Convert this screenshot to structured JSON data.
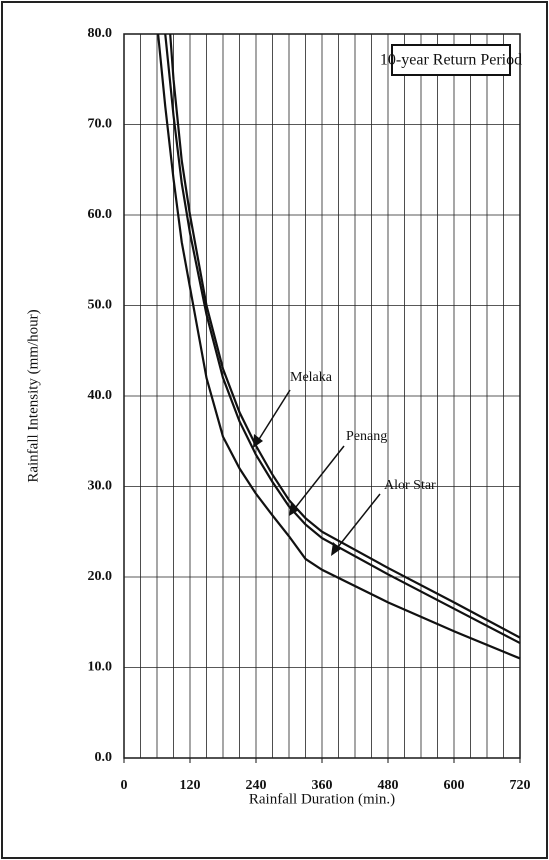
{
  "chart_data": {
    "type": "line",
    "annotations": [
      "10-year Return Period",
      "Melaka",
      "Penang",
      "Alor Star"
    ],
    "xlabel": "Rainfall Duration (min.)",
    "ylabel": "Rainfall Intensity (mm/hour)",
    "xlim": [
      0,
      720
    ],
    "ylim": [
      0,
      80
    ],
    "xticks": [
      0,
      120,
      240,
      360,
      480,
      600,
      720
    ],
    "xgrid": [
      0,
      30,
      60,
      90,
      120,
      150,
      180,
      210,
      240,
      270,
      300,
      330,
      360,
      390,
      420,
      450,
      480,
      510,
      540,
      570,
      600,
      630,
      660,
      690,
      720
    ],
    "yticks": [
      {
        "value": 0,
        "label": "0.0"
      },
      {
        "value": 10,
        "label": "10.0"
      },
      {
        "value": 20,
        "label": "20.0"
      },
      {
        "value": 30,
        "label": "30.0"
      },
      {
        "value": 40,
        "label": "40.0"
      },
      {
        "value": 50,
        "label": "50.0"
      },
      {
        "value": 60,
        "label": "60.0"
      },
      {
        "value": 70,
        "label": "70.0"
      },
      {
        "value": 80,
        "label": "80.0"
      }
    ],
    "grid": true,
    "series": [
      {
        "name": "Melaka",
        "color": "#111111",
        "x": [
          75,
          90,
          105,
          120,
          150,
          180,
          210,
          240,
          270,
          300,
          330,
          360,
          480,
          600,
          720
        ],
        "values": [
          80,
          71,
          63.5,
          58,
          49,
          42,
          37.2,
          33.5,
          30.5,
          27.8,
          25.8,
          24.3,
          20.3,
          16.5,
          12.7
        ]
      },
      {
        "name": "Penang",
        "color": "#111111",
        "x": [
          84,
          90,
          105,
          120,
          150,
          180,
          210,
          240,
          270,
          300,
          330,
          360,
          480,
          600,
          720
        ],
        "values": [
          80,
          75,
          66,
          60,
          50,
          43,
          38.2,
          34.5,
          31.3,
          28.5,
          26.5,
          25,
          21,
          17.2,
          13.3
        ]
      },
      {
        "name": "Alor Star",
        "color": "#111111",
        "x": [
          62,
          75,
          90,
          105,
          120,
          150,
          180,
          210,
          240,
          270,
          300,
          330,
          360,
          480,
          600,
          720
        ],
        "values": [
          80,
          72,
          64,
          57,
          52,
          42,
          35.5,
          32,
          29.2,
          26.8,
          24.5,
          22,
          20.8,
          17.2,
          14,
          11
        ]
      }
    ]
  }
}
